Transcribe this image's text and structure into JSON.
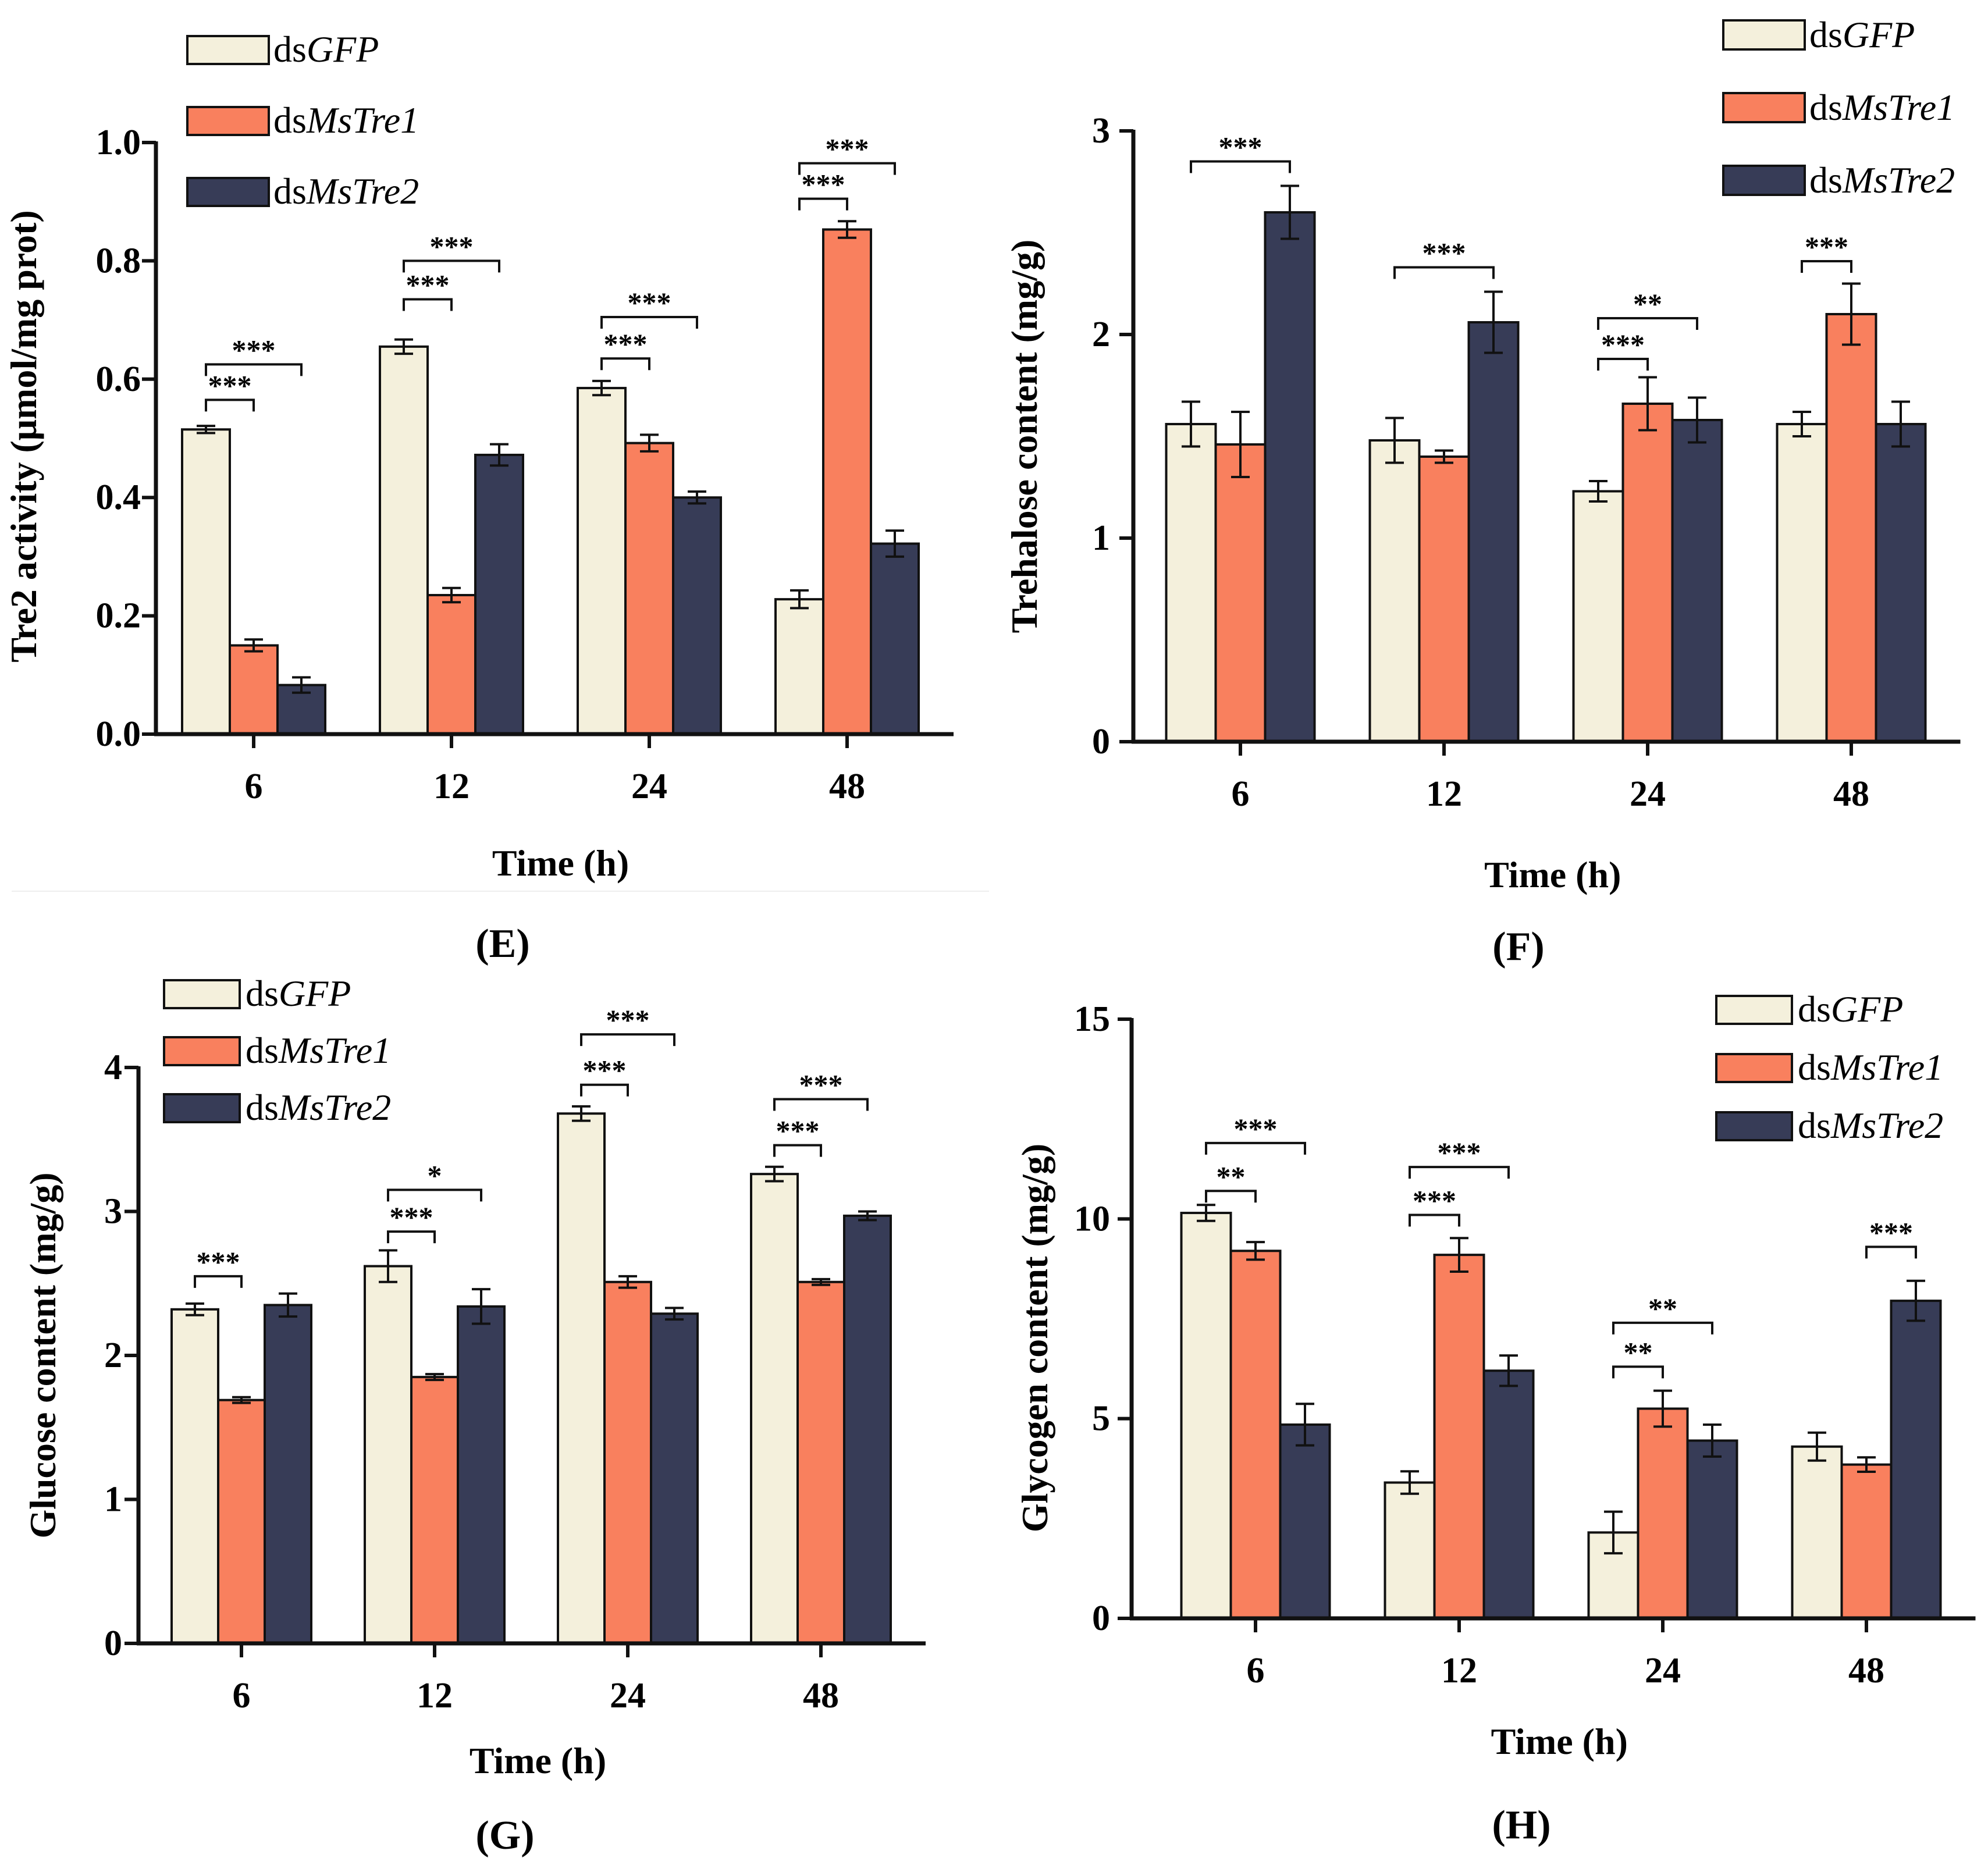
{
  "colors": {
    "dsGFP": "#f4f0dc",
    "dsMsTre1": "#f9805e",
    "dsMsTre2": "#373c57",
    "stroke": "#111111"
  },
  "legend": [
    {
      "prefix": "ds",
      "italic": "GFP"
    },
    {
      "prefix": "ds",
      "italic": "MsTre1"
    },
    {
      "prefix": "ds",
      "italic": "MsTre2"
    }
  ],
  "chart_data": [
    {
      "panel": "(E)",
      "type": "bar",
      "ylabel": "Tre2 activity (μmol/mg prot)",
      "xlabel": "Time (h)",
      "categories": [
        "6",
        "12",
        "24",
        "48"
      ],
      "ylim": [
        0,
        1.0
      ],
      "yticks": [
        "0.0",
        "0.2",
        "0.4",
        "0.6",
        "0.8",
        "1.0"
      ],
      "ytick_values": [
        0,
        0.2,
        0.4,
        0.6,
        0.8,
        1.0
      ],
      "series": [
        {
          "name": "dsGFP",
          "values": [
            0.515,
            0.655,
            0.585,
            0.228
          ],
          "errors": [
            0.006,
            0.012,
            0.012,
            0.015
          ]
        },
        {
          "name": "dsMsTre1",
          "values": [
            0.15,
            0.235,
            0.492,
            0.853
          ],
          "errors": [
            0.01,
            0.012,
            0.014,
            0.014
          ]
        },
        {
          "name": "dsMsTre2",
          "values": [
            0.083,
            0.472,
            0.4,
            0.322
          ],
          "errors": [
            0.013,
            0.018,
            0.01,
            0.022
          ]
        }
      ],
      "significance": [
        {
          "group": 0,
          "from": 0,
          "to": 1,
          "label": "***",
          "y": 0.565
        },
        {
          "group": 0,
          "from": 0,
          "to": 2,
          "label": "***",
          "y": 0.625
        },
        {
          "group": 1,
          "from": 0,
          "to": 1,
          "label": "***",
          "y": 0.735
        },
        {
          "group": 1,
          "from": 0,
          "to": 2,
          "label": "***",
          "y": 0.8
        },
        {
          "group": 2,
          "from": 0,
          "to": 1,
          "label": "***",
          "y": 0.635
        },
        {
          "group": 2,
          "from": 0,
          "to": 2,
          "label": "***",
          "y": 0.705
        },
        {
          "group": 3,
          "from": 0,
          "to": 1,
          "label": "***",
          "y": 0.905
        },
        {
          "group": 3,
          "from": 0,
          "to": 2,
          "label": "***",
          "y": 0.965
        }
      ]
    },
    {
      "panel": "(F)",
      "type": "bar",
      "ylabel": "Trehalose content (mg/g)",
      "xlabel": "Time (h)",
      "categories": [
        "6",
        "12",
        "24",
        "48"
      ],
      "ylim": [
        0,
        3
      ],
      "yticks": [
        "0",
        "1",
        "2",
        "3"
      ],
      "ytick_values": [
        0,
        1,
        2,
        3
      ],
      "series": [
        {
          "name": "dsGFP",
          "values": [
            1.56,
            1.48,
            1.23,
            1.56
          ],
          "errors": [
            0.11,
            0.11,
            0.05,
            0.06
          ]
        },
        {
          "name": "dsMsTre1",
          "values": [
            1.46,
            1.4,
            1.66,
            2.1
          ],
          "errors": [
            0.16,
            0.03,
            0.13,
            0.15
          ]
        },
        {
          "name": "dsMsTre2",
          "values": [
            2.6,
            2.06,
            1.58,
            1.56
          ],
          "errors": [
            0.13,
            0.15,
            0.11,
            0.11
          ]
        }
      ],
      "significance": [
        {
          "group": 0,
          "from": 0,
          "to": 2,
          "label": "***",
          "y": 2.85
        },
        {
          "group": 1,
          "from": 0,
          "to": 2,
          "label": "***",
          "y": 2.33
        },
        {
          "group": 2,
          "from": 0,
          "to": 1,
          "label": "***",
          "y": 1.88
        },
        {
          "group": 2,
          "from": 0,
          "to": 2,
          "label": "**",
          "y": 2.08
        },
        {
          "group": 3,
          "from": 0,
          "to": 1,
          "label": "***",
          "y": 2.36
        }
      ]
    },
    {
      "panel": "(G)",
      "type": "bar",
      "ylabel": "Glucose content (mg/g)",
      "xlabel": "Time (h)",
      "categories": [
        "6",
        "12",
        "24",
        "48"
      ],
      "ylim": [
        0,
        4
      ],
      "yticks": [
        "0",
        "1",
        "2",
        "3",
        "4"
      ],
      "ytick_values": [
        0,
        1,
        2,
        3,
        4
      ],
      "series": [
        {
          "name": "dsGFP",
          "values": [
            2.32,
            2.62,
            3.68,
            3.26
          ],
          "errors": [
            0.04,
            0.11,
            0.05,
            0.05
          ]
        },
        {
          "name": "dsMsTre1",
          "values": [
            1.69,
            1.85,
            2.51,
            2.51
          ],
          "errors": [
            0.02,
            0.02,
            0.04,
            0.02
          ]
        },
        {
          "name": "dsMsTre2",
          "values": [
            2.35,
            2.34,
            2.29,
            2.97
          ],
          "errors": [
            0.08,
            0.12,
            0.04,
            0.03
          ]
        }
      ],
      "significance": [
        {
          "group": 0,
          "from": 0,
          "to": 1,
          "label": "***",
          "y": 2.55
        },
        {
          "group": 1,
          "from": 0,
          "to": 1,
          "label": "***",
          "y": 2.86
        },
        {
          "group": 1,
          "from": 0,
          "to": 2,
          "label": "*",
          "y": 3.15
        },
        {
          "group": 2,
          "from": 0,
          "to": 1,
          "label": "***",
          "y": 3.88
        },
        {
          "group": 2,
          "from": 0,
          "to": 2,
          "label": "***",
          "y": 4.23
        },
        {
          "group": 3,
          "from": 0,
          "to": 1,
          "label": "***",
          "y": 3.46
        },
        {
          "group": 3,
          "from": 0,
          "to": 2,
          "label": "***",
          "y": 3.78
        }
      ]
    },
    {
      "panel": "(H)",
      "type": "bar",
      "ylabel": "Glycogen content (mg/g)",
      "xlabel": "Time (h)",
      "categories": [
        "6",
        "12",
        "24",
        "48"
      ],
      "ylim": [
        0,
        15
      ],
      "yticks": [
        "0",
        "5",
        "10",
        "15"
      ],
      "ytick_values": [
        0,
        5,
        10,
        15
      ],
      "series": [
        {
          "name": "dsGFP",
          "values": [
            10.15,
            3.4,
            2.15,
            4.3
          ],
          "errors": [
            0.2,
            0.28,
            0.52,
            0.35
          ]
        },
        {
          "name": "dsMsTre1",
          "values": [
            9.2,
            9.1,
            5.25,
            3.85
          ],
          "errors": [
            0.22,
            0.42,
            0.45,
            0.18
          ]
        },
        {
          "name": "dsMsTre2",
          "values": [
            4.85,
            6.2,
            4.45,
            7.95
          ],
          "errors": [
            0.52,
            0.38,
            0.4,
            0.5
          ]
        }
      ],
      "significance": [
        {
          "group": 0,
          "from": 0,
          "to": 1,
          "label": "**",
          "y": 10.7
        },
        {
          "group": 0,
          "from": 0,
          "to": 2,
          "label": "***",
          "y": 11.9
        },
        {
          "group": 1,
          "from": 0,
          "to": 1,
          "label": "***",
          "y": 10.1
        },
        {
          "group": 1,
          "from": 0,
          "to": 2,
          "label": "***",
          "y": 11.3
        },
        {
          "group": 2,
          "from": 0,
          "to": 1,
          "label": "**",
          "y": 6.3
        },
        {
          "group": 2,
          "from": 0,
          "to": 2,
          "label": "**",
          "y": 7.4
        },
        {
          "group": 3,
          "from": 1,
          "to": 2,
          "label": "***",
          "y": 9.3
        }
      ]
    }
  ]
}
